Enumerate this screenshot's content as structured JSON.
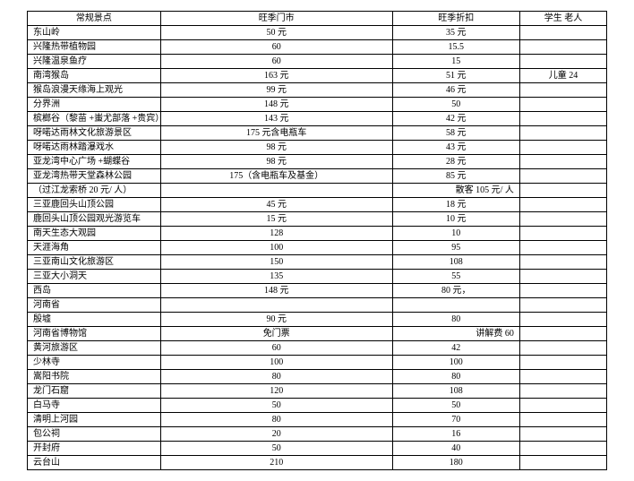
{
  "header": {
    "c1": "常规景点",
    "c2": "旺季门市",
    "c3": "旺季折扣",
    "c4": "学生 老人"
  },
  "rows": [
    {
      "c1": "东山岭",
      "c2": "50 元",
      "c2align": "center",
      "c3": "35 元",
      "c4": ""
    },
    {
      "c1": "兴隆热带植物园",
      "c2": "60",
      "c2align": "center",
      "c3": "15.5",
      "c4": ""
    },
    {
      "c1": "兴隆温泉鱼疗",
      "c2": "60",
      "c2align": "center",
      "c3": "15",
      "c4": ""
    },
    {
      "c1": "南湾猴岛",
      "c2": "163 元",
      "c2align": "center",
      "c3": "51 元",
      "c4": "儿童 24"
    },
    {
      "c1": "猴岛浪漫天缘海上观光",
      "c2": "99 元",
      "c2align": "center",
      "c3": "46 元",
      "c4": ""
    },
    {
      "c1": "分界洲",
      "c2": "148 元",
      "c2align": "center",
      "c3": "50",
      "c4": ""
    },
    {
      "c1": "槟榔谷（黎苗 +蚩尤部落 +贵宾）",
      "c2": "143 元",
      "c2align": "center",
      "c3": "42 元",
      "c4": ""
    },
    {
      "c1": "呀喏达雨林文化旅游景区",
      "c2": "175 元含电瓶车",
      "c2align": "center",
      "c3": "58 元",
      "c4": ""
    },
    {
      "c1": "呀喏达雨林踏瀑戏水",
      "c2": "98 元",
      "c2align": "center",
      "c3": "43 元",
      "c4": ""
    },
    {
      "c1": "亚龙湾中心广场 +蝴蝶谷",
      "c2": "98 元",
      "c2align": "center",
      "c3": "28 元",
      "c4": ""
    },
    {
      "c1": "亚龙湾热带天堂森林公园",
      "c2": "175（含电瓶车及基金）",
      "c2align": "center",
      "c3": "85 元",
      "c4": ""
    },
    {
      "c1": "（过江龙索桥 20 元/ 人）",
      "c2": "",
      "c2align": "center",
      "c3": "散客 105 元/ 人",
      "c3align": "right",
      "c4": ""
    },
    {
      "c1": "三亚鹿回头山顶公园",
      "c2": "45 元",
      "c2align": "center",
      "c3": "18 元",
      "c4": ""
    },
    {
      "c1": "鹿回头山顶公园观光游览车",
      "c2": "15 元",
      "c2align": "center",
      "c3": "10 元",
      "c4": ""
    },
    {
      "c1": "南天生态大观园",
      "c2": "128",
      "c2align": "center",
      "c3": "10",
      "c4": ""
    },
    {
      "c1": "天涯海角",
      "c2": "100",
      "c2align": "center",
      "c3": "95",
      "c4": ""
    },
    {
      "c1": "三亚南山文化旅游区",
      "c2": "150",
      "c2align": "center",
      "c3": "108",
      "c4": ""
    },
    {
      "c1": "三亚大小洞天",
      "c2": "135",
      "c2align": "center",
      "c3": "55",
      "c4": ""
    },
    {
      "c1": "西岛",
      "c2": "148 元",
      "c2align": "center",
      "c3": "80 元，",
      "c4": ""
    },
    {
      "c1": "河南省",
      "c2": "",
      "c2align": "center",
      "c3": "",
      "c4": ""
    },
    {
      "c1": "殷墟",
      "c2": "90 元",
      "c2align": "center",
      "c3": "80",
      "c4": ""
    },
    {
      "c1": "河南省博物馆",
      "c2": "免门票",
      "c2align": "center",
      "c3": "讲解费 60",
      "c3align": "right",
      "c4": ""
    },
    {
      "c1": "黄河旅游区",
      "c2": "60",
      "c2align": "center",
      "c3": "42",
      "c4": ""
    },
    {
      "c1": "少林寺",
      "c2": "100",
      "c2align": "center",
      "c3": "100",
      "c4": ""
    },
    {
      "c1": "嵩阳书院",
      "c2": "80",
      "c2align": "center",
      "c3": "80",
      "c4": ""
    },
    {
      "c1": "龙门石窟",
      "c2": "120",
      "c2align": "center",
      "c3": "108",
      "c4": ""
    },
    {
      "c1": "白马寺",
      "c2": "50",
      "c2align": "center",
      "c3": "50",
      "c4": ""
    },
    {
      "c1": "清明上河园",
      "c2": "80",
      "c2align": "center",
      "c3": "70",
      "c4": ""
    },
    {
      "c1": "包公祠",
      "c2": "20",
      "c2align": "center",
      "c3": "16",
      "c4": ""
    },
    {
      "c1": "开封府",
      "c2": "50",
      "c2align": "center",
      "c3": "40",
      "c4": ""
    },
    {
      "c1": "云台山",
      "c2": "210",
      "c2align": "center",
      "c3": "180",
      "c4": ""
    }
  ]
}
